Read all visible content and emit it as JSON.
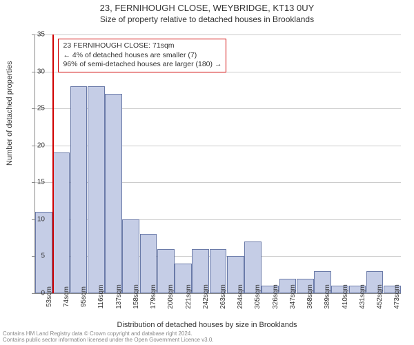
{
  "title": "23, FERNIHOUGH CLOSE, WEYBRIDGE, KT13 0UY",
  "subtitle": "Size of property relative to detached houses in Brooklands",
  "chart": {
    "type": "histogram",
    "y_label": "Number of detached properties",
    "x_label": "Distribution of detached houses by size in Brooklands",
    "ylim": [
      0,
      35
    ],
    "ytick_step": 5,
    "y_ticks": [
      0,
      5,
      10,
      15,
      20,
      25,
      30,
      35
    ],
    "categories": [
      "53sqm",
      "74sqm",
      "95sqm",
      "116sqm",
      "137sqm",
      "158sqm",
      "179sqm",
      "200sqm",
      "221sqm",
      "242sqm",
      "263sqm",
      "284sqm",
      "305sqm",
      "326sqm",
      "347sqm",
      "368sqm",
      "389sqm",
      "410sqm",
      "431sqm",
      "452sqm",
      "473sqm"
    ],
    "values": [
      11,
      19,
      28,
      28,
      27,
      10,
      8,
      6,
      4,
      6,
      6,
      5,
      7,
      1,
      2,
      2,
      3,
      1,
      1,
      3,
      1
    ],
    "bar_fill": "#c5cde6",
    "bar_border": "#6a7aa8",
    "grid_color": "#cccccc",
    "axis_color": "#888888",
    "background_color": "#ffffff",
    "marker": {
      "position_category_index": 1,
      "color": "#d00000"
    },
    "annotation": {
      "lines": [
        "23 FERNIHOUGH CLOSE: 71sqm",
        "← 4% of detached houses are smaller (7)",
        "96% of semi-detached houses are larger (180) →"
      ],
      "border_color": "#d00000"
    },
    "title_fontsize": 13,
    "subtitle_fontsize": 12,
    "label_fontsize": 11,
    "tick_fontsize": 10
  },
  "footer": {
    "line1": "Contains HM Land Registry data © Crown copyright and database right 2024.",
    "line2": "Contains public sector information licensed under the Open Government Licence v3.0."
  }
}
